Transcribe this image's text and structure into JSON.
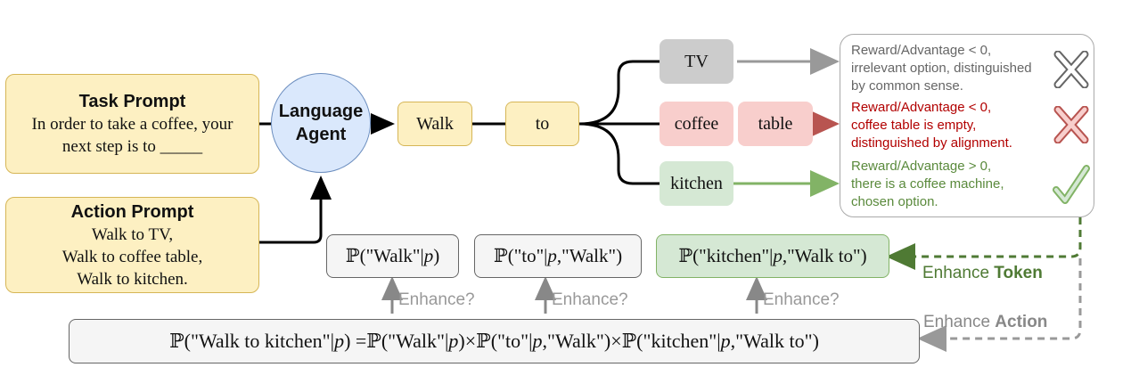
{
  "task_prompt": {
    "title": "Task Prompt",
    "line1": "In order to take a coffee, your",
    "line2": "next step is to _____"
  },
  "action_prompt": {
    "title": "Action Prompt",
    "line1": "Walk to TV,",
    "line2": "Walk to coffee table,",
    "line3": "Walk to kitchen."
  },
  "agent": {
    "line1": "Language",
    "line2": "Agent"
  },
  "tokens": {
    "walk": "Walk",
    "to": "to",
    "tv": "TV",
    "coffee": "coffee",
    "table": "table",
    "kitchen": "kitchen"
  },
  "rewards": {
    "tv": {
      "line1": "Reward/Advantage < 0,",
      "line2": "irrelevant option, distinguished",
      "line3": "by common sense.",
      "color": "#666666"
    },
    "coffee": {
      "line1": "Reward/Advantage < 0,",
      "line2": "coffee table is empty,",
      "line3": "distinguished by alignment.",
      "color": "#b20000"
    },
    "kitchen": {
      "line1": "Reward/Advantage > 0,",
      "line2": "there is a coffee machine,",
      "line3": "chosen option.",
      "color": "#5a8a3c"
    }
  },
  "probabilities": {
    "p_walk": {
      "bb": "ℙ",
      "open": "(",
      "arg": "\"Walk\"| ",
      "var": "p",
      "close": ")"
    },
    "p_to": {
      "bb": "ℙ",
      "open": "(",
      "arg": "\"to\"| ",
      "var": "p",
      "cond": ",\"Walk\"",
      "close": ")"
    },
    "p_kitchen": {
      "bb": "ℙ",
      "open": "(",
      "arg": "\"kitchen\"| ",
      "var": "p",
      "cond": ",\"Walk to\"",
      "close": ")"
    }
  },
  "enhance_q": "Enhance?",
  "enhance_token": {
    "prefix": "Enhance ",
    "bold": "Token"
  },
  "enhance_action": {
    "prefix": "Enhance ",
    "bold": "Action"
  },
  "equation": {
    "lhs": "ℙ(\"Walk to kitchen\"| ",
    "lhs_var": "p",
    "eq": ") = ",
    "t1": "ℙ(\"Walk\"| ",
    "t1_var": "p",
    "t1_close": ")",
    "times": " × ",
    "t2": "ℙ(\"to\"| ",
    "t2_var": "p",
    "t2_close": ",\"Walk\")",
    "t3": "ℙ(\"kitchen\"| ",
    "t3_var": "p",
    "t3_close": ",\"Walk to\")"
  },
  "colors": {
    "grey_arrow": "#999999",
    "red_arrow": "#b85450",
    "green_arrow": "#82b366",
    "green_dash": "#4f7a34"
  },
  "icons": [
    "cross-icon-grey",
    "cross-icon-red",
    "check-icon-green"
  ]
}
